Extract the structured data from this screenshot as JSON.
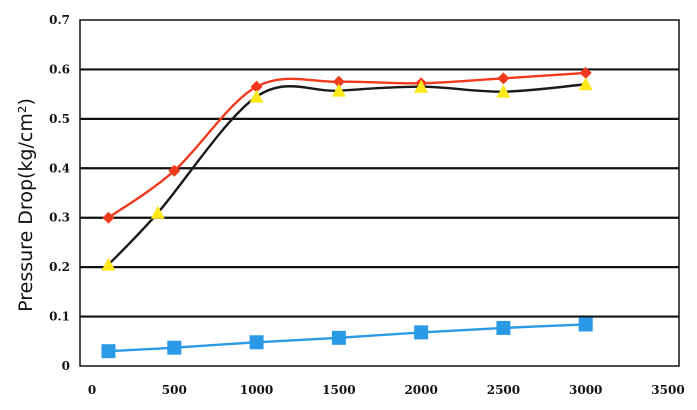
{
  "chart_data": {
    "type": "line",
    "title": "",
    "xlabel": "",
    "ylabel": "Pressure Drop(kg/cm²)",
    "xlim": [
      0,
      3500
    ],
    "ylim": [
      0,
      0.7
    ],
    "x_ticks": [
      "0",
      "500",
      "1000",
      "1500",
      "2000",
      "2500",
      "3000",
      "3500"
    ],
    "y_ticks": [
      "0",
      "0.1",
      "0.2",
      "0.3",
      "0.4",
      "0.5",
      "0.6",
      "0.7"
    ],
    "grid": "horizontal",
    "series": [
      {
        "marker": "diamond",
        "color": "#f03a1e",
        "x": [
          100,
          500,
          1000,
          1500,
          2000,
          2500,
          3000
        ],
        "y": [
          0.3,
          0.395,
          0.565,
          0.575,
          0.572,
          0.582,
          0.593
        ]
      },
      {
        "marker": "triangle",
        "color": "#ffe81a",
        "line_color": "#1a1a1a",
        "x": [
          100,
          400,
          1000,
          1500,
          2000,
          2500,
          3000
        ],
        "y": [
          0.205,
          0.31,
          0.545,
          0.557,
          0.565,
          0.555,
          0.57
        ]
      },
      {
        "marker": "square",
        "color": "#2b9ae6",
        "x": [
          100,
          500,
          1000,
          1500,
          2000,
          2500,
          3000
        ],
        "y": [
          0.03,
          0.037,
          0.048,
          0.057,
          0.068,
          0.077,
          0.084
        ]
      }
    ]
  }
}
